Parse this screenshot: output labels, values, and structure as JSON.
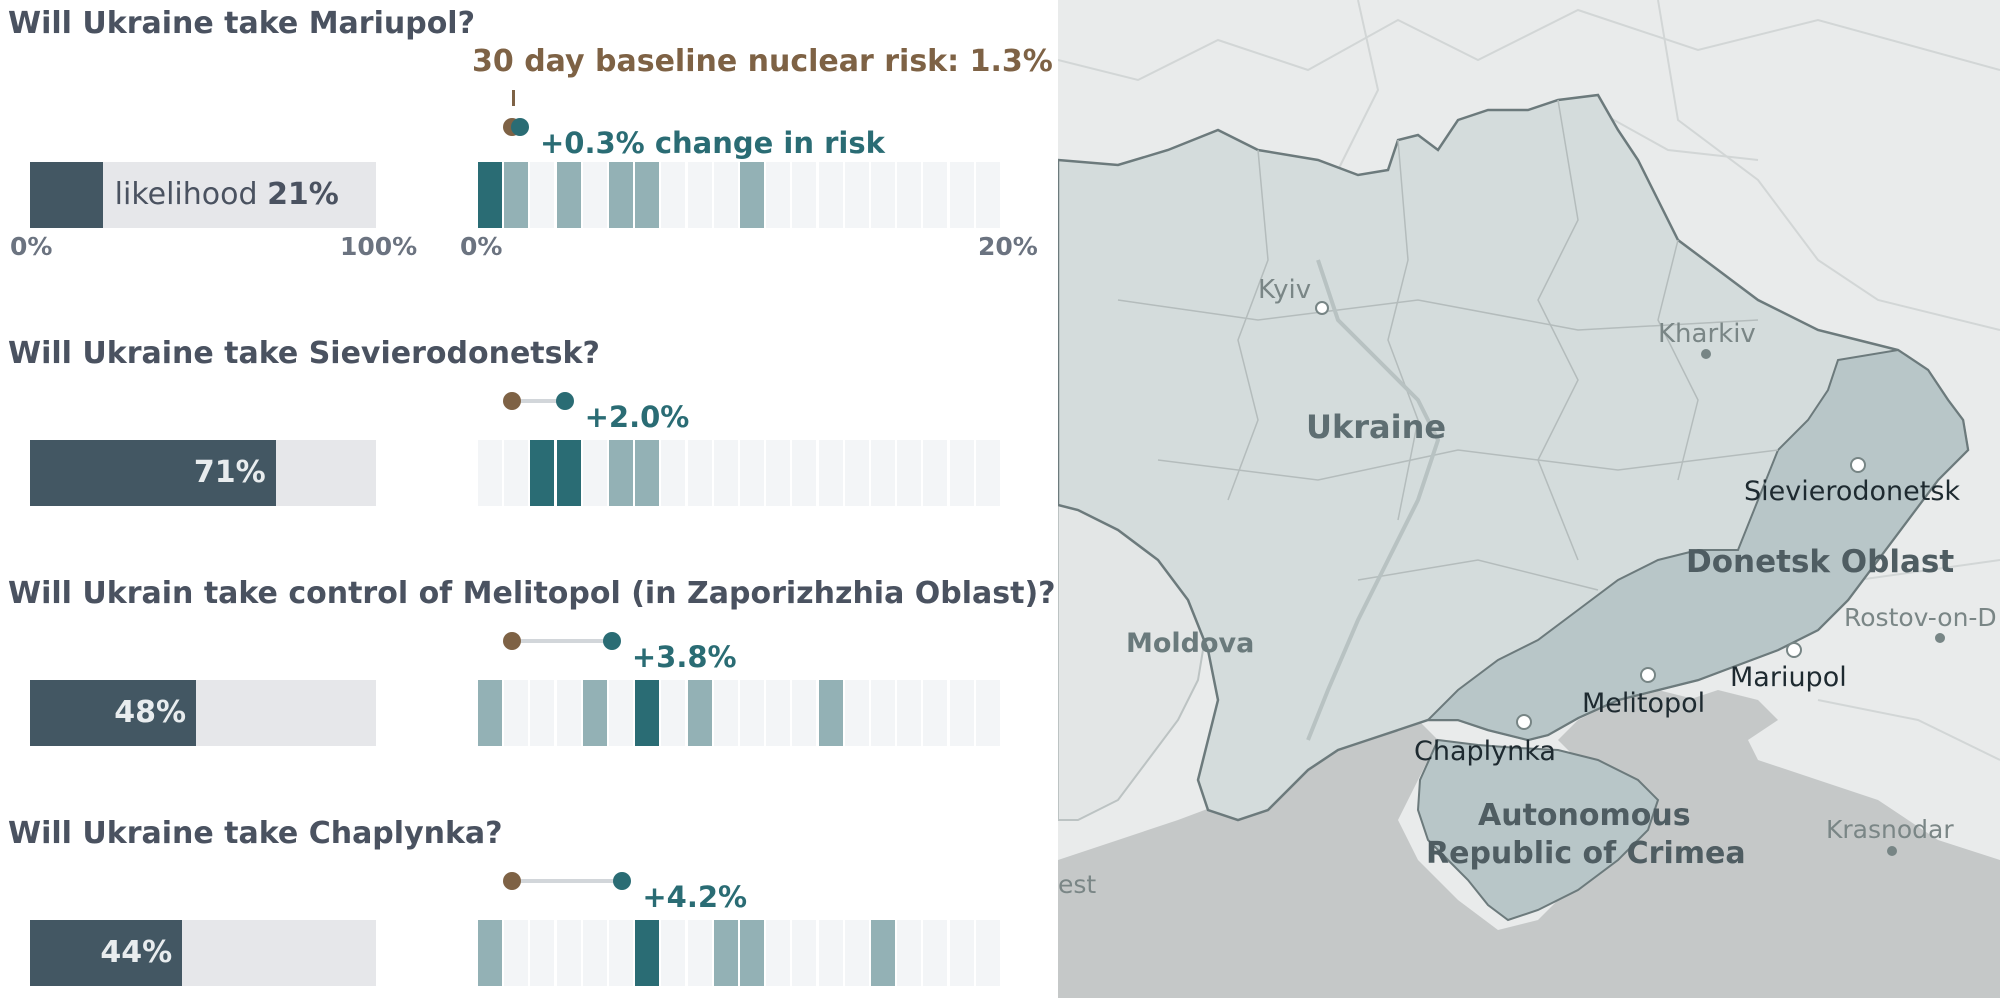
{
  "baseline_label": "30 day baseline nuclear risk: 1.3%",
  "axes": {
    "likelihood_min": "0%",
    "likelihood_max": "100%",
    "risk_min": "0%",
    "risk_max": "20%"
  },
  "colors": {
    "likelihood_fill": "#435763",
    "likelihood_track": "#e6e7ea",
    "baseline": "#7e6245",
    "conditional": "#2a6c74",
    "distribution_light": "#93b1b5",
    "question_text": "#4a5260",
    "map_water": "#c5c8c8",
    "map_land": "#e9ebeb",
    "map_ukraine": "#d4dcdc",
    "map_occupied": "#b8c6c8"
  },
  "questions": [
    {
      "title": "Will Ukraine take Mariupol?",
      "likelihood_label": "likelihood",
      "likelihood_value": "21%",
      "change_label": "+0.3% change in risk"
    },
    {
      "title": "Will Ukraine take Sievierodonetsk?",
      "likelihood_value": "71%",
      "change_label": "+2.0%"
    },
    {
      "title": "Will Ukrain take control of Melitopol (in Zaporizhzhia Oblast)?",
      "likelihood_value": "48%",
      "change_label": "+3.8%"
    },
    {
      "title": "Will Ukraine take Chaplynka?",
      "likelihood_value": "44%",
      "change_label": "+4.2%"
    }
  ],
  "chart_data": {
    "type": "bar",
    "likelihood_axis": [
      0,
      100
    ],
    "risk_axis": [
      0,
      20
    ],
    "baseline_risk": 1.3,
    "series": [
      {
        "question": "Will Ukraine take Mariupol?",
        "likelihood": 21,
        "risk_change": 0.3,
        "conditional_risk": 1.6,
        "distribution_bins": [
          0,
          1,
          3,
          5,
          6,
          10
        ],
        "highlight_bin": 0
      },
      {
        "question": "Will Ukraine take Sievierodonetsk?",
        "likelihood": 71,
        "risk_change": 2.0,
        "conditional_risk": 3.3,
        "distribution_bins": [
          2,
          3,
          5,
          6
        ],
        "highlight_bin": [
          2,
          3
        ]
      },
      {
        "question": "Will Ukrain take control of Melitopol (in Zaporizhzhia Oblast)?",
        "likelihood": 48,
        "risk_change": 3.8,
        "conditional_risk": 5.1,
        "distribution_bins": [
          0,
          4,
          6,
          8,
          13
        ],
        "highlight_bin": 6
      },
      {
        "question": "Will Ukraine take Chaplynka?",
        "likelihood": 44,
        "risk_change": 4.2,
        "conditional_risk": 5.5,
        "distribution_bins": [
          0,
          6,
          9,
          10,
          15
        ],
        "highlight_bin": 6
      }
    ]
  },
  "map": {
    "labels": {
      "kyiv": "Kyiv",
      "kharkiv": "Kharkiv",
      "ukraine": "Ukraine",
      "sievierodonetsk": "Sievierodonetsk",
      "donetsk_oblast": "Donetsk Oblast",
      "rostov": "Rostov-on-D",
      "moldova": "Moldova",
      "melitopol": "Melitopol",
      "mariupol": "Mariupol",
      "chaplynka": "Chaplynka",
      "crimea_line1": "Autonomous",
      "crimea_line2": "Republic of Crimea",
      "krasnodar": "Krasnodar",
      "est": "est"
    }
  }
}
